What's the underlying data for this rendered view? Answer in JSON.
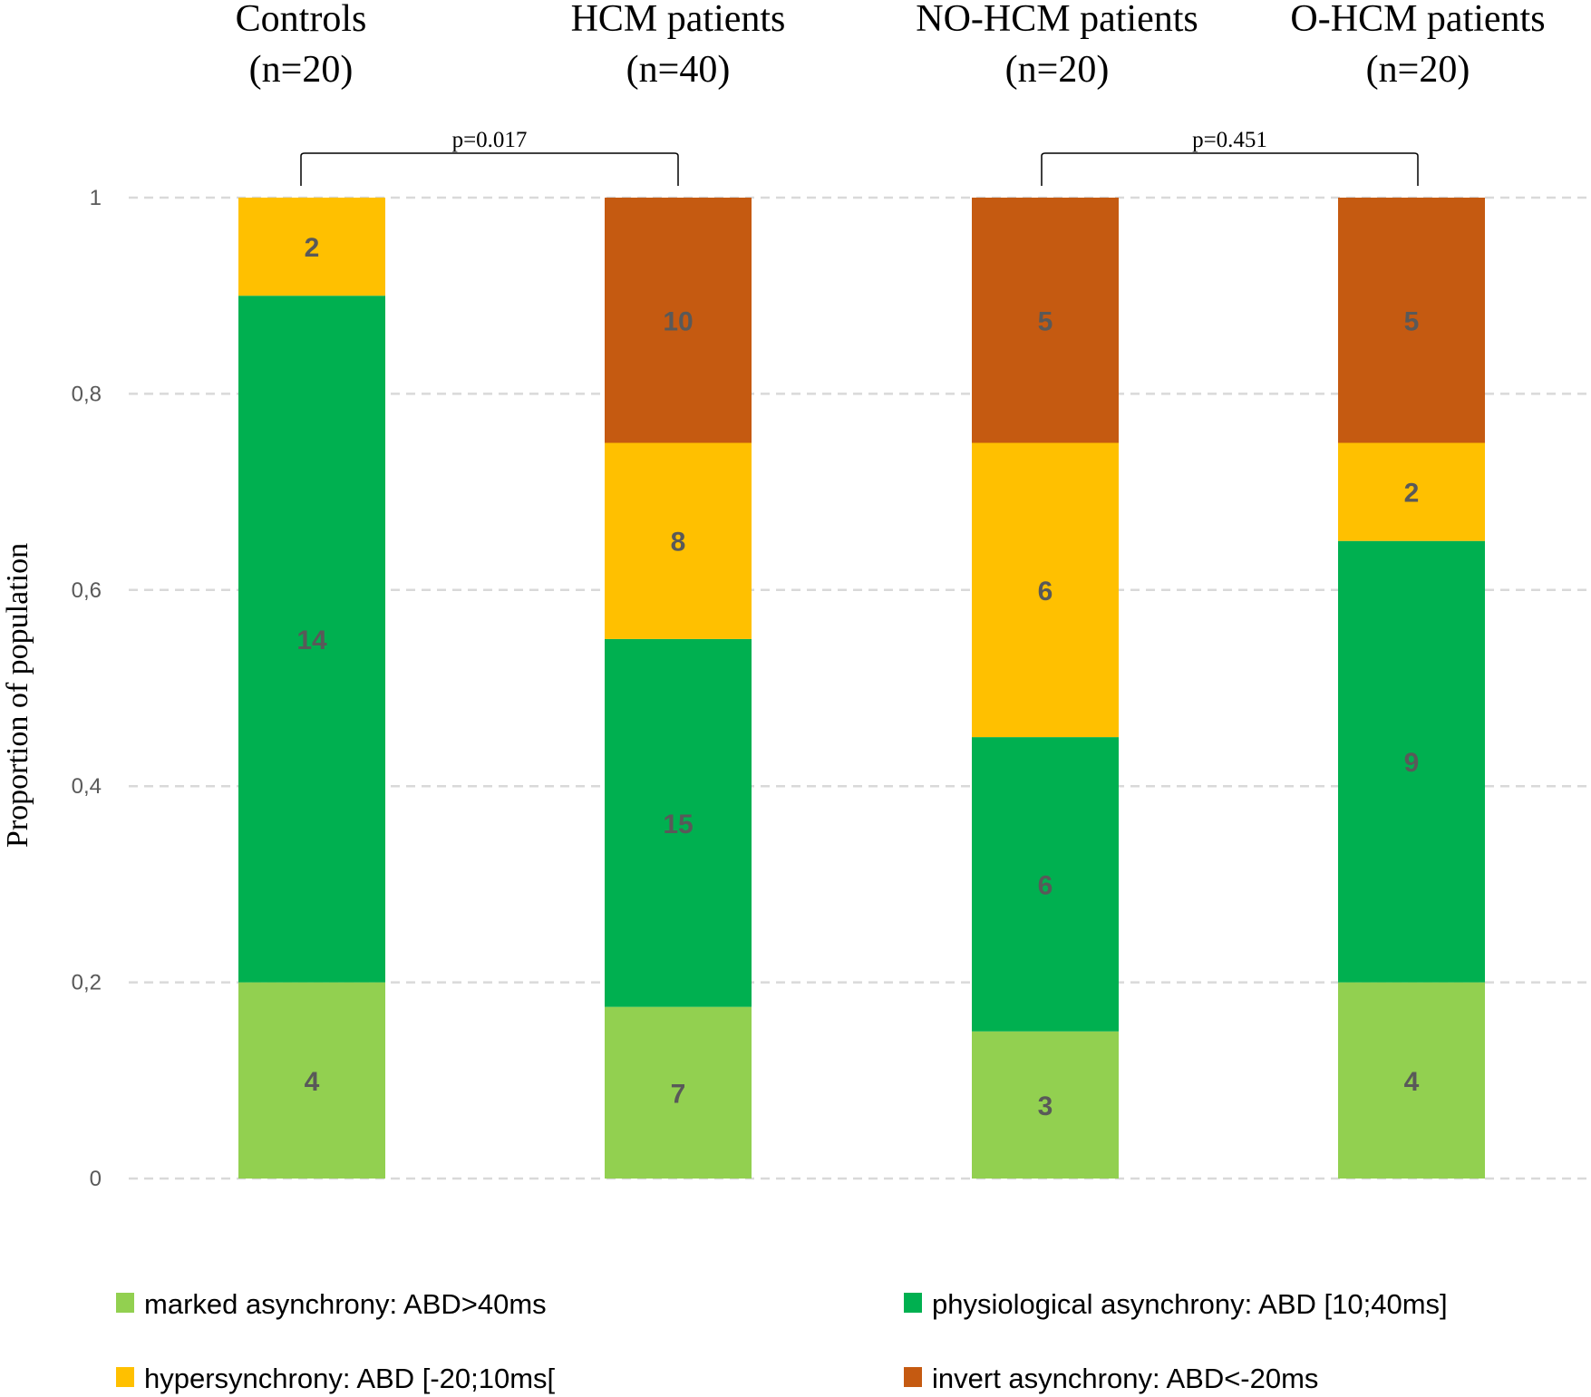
{
  "chart_data": {
    "type": "bar",
    "stacked": true,
    "normalized": true,
    "ylabel": "Proportion of population",
    "ylim": [
      0,
      1
    ],
    "yticks": [
      "0",
      "0,2",
      "0,4",
      "0,6",
      "0,8",
      "1"
    ],
    "grid": true,
    "legend_position": "bottom",
    "categories": [
      {
        "title": "Controls",
        "n_label": "(n=20)",
        "n": 20
      },
      {
        "title": "HCM patients",
        "n_label": "(n=40)",
        "n": 40
      },
      {
        "title": "NO-HCM patients",
        "n_label": "(n=20)",
        "n": 20
      },
      {
        "title": "O-HCM patients",
        "n_label": "(n=20)",
        "n": 20
      }
    ],
    "series": [
      {
        "name": "marked asynchrony: ABD>40ms",
        "color": "#92d050",
        "values": [
          4,
          7,
          3,
          4
        ]
      },
      {
        "name": "physiological asynchrony: ABD [10;40ms]",
        "color": "#00b050",
        "values": [
          14,
          15,
          6,
          9
        ]
      },
      {
        "name": "hypersynchrony: ABD [-20;10ms[",
        "color": "#ffc000",
        "values": [
          2,
          8,
          6,
          2
        ]
      },
      {
        "name": "invert asynchrony: ABD<-20ms",
        "color": "#c55a11",
        "values": [
          0,
          10,
          5,
          5
        ]
      }
    ],
    "comparisons": [
      {
        "groups": [
          0,
          1
        ],
        "label": "p=0.017"
      },
      {
        "groups": [
          2,
          3
        ],
        "label": "p=0.451"
      }
    ]
  }
}
